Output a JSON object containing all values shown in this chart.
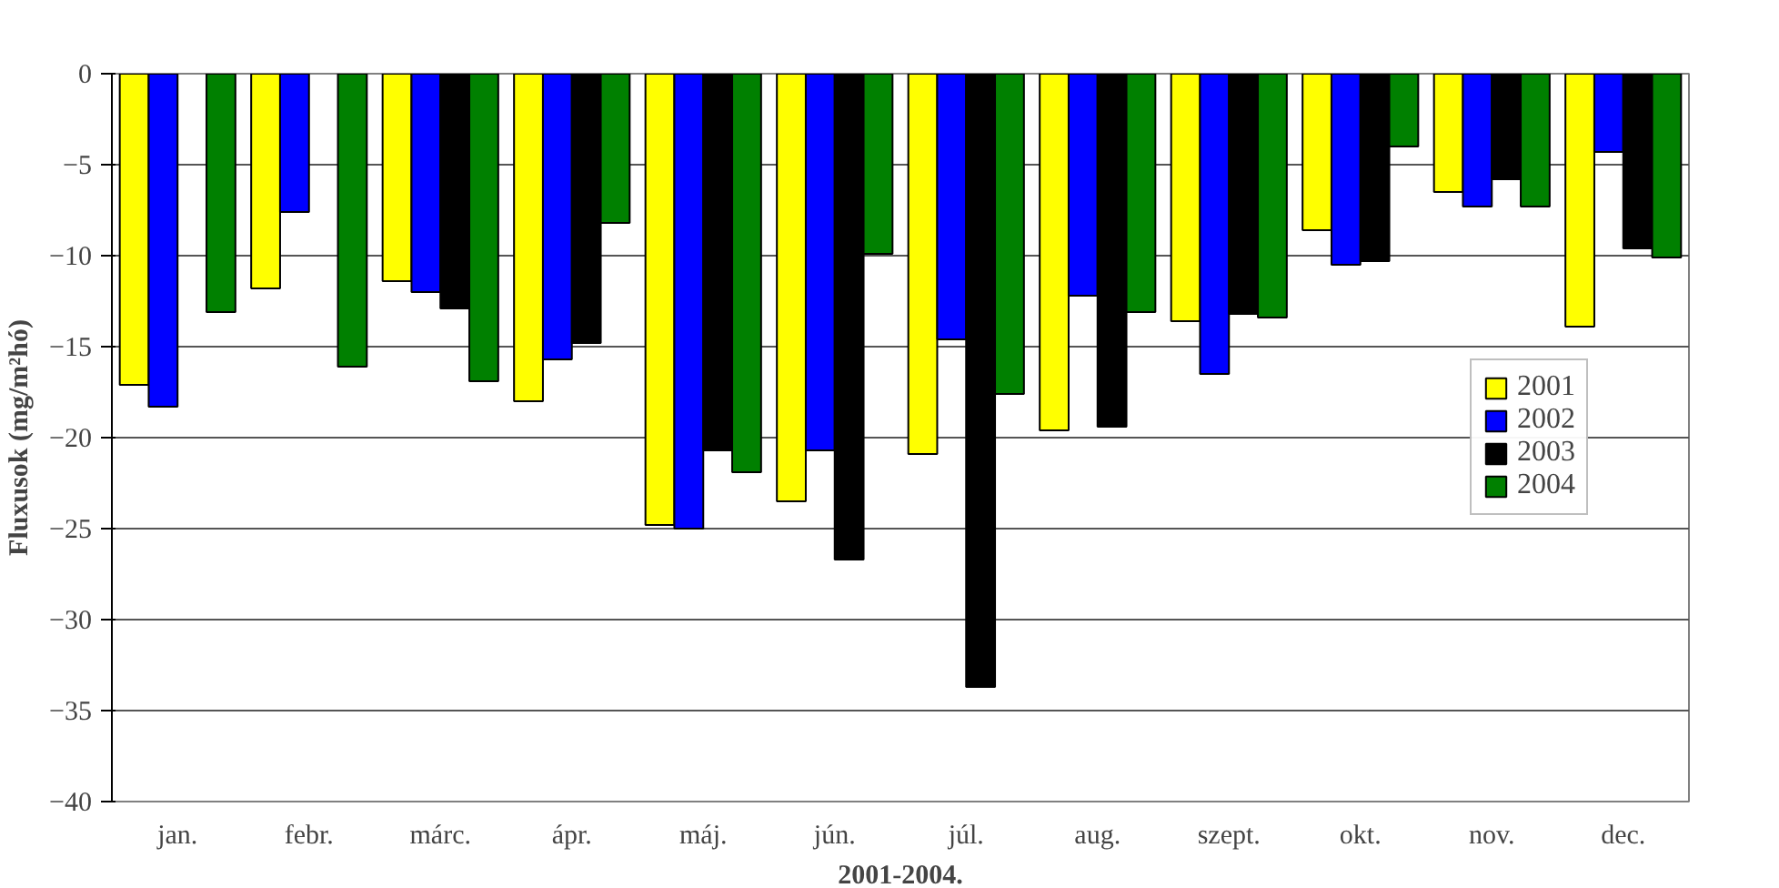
{
  "chart_data": {
    "type": "bar",
    "xlabel": "2001-2004.",
    "ylabel": "Fluxusok (mg/m²hó)",
    "categories": [
      "jan.",
      "febr.",
      "márc.",
      "ápr.",
      "máj.",
      "jún.",
      "júl.",
      "aug.",
      "szept.",
      "okt.",
      "nov.",
      "dec."
    ],
    "series": [
      {
        "name": "2001",
        "color": "#ffff00",
        "values": [
          -17.1,
          -11.8,
          -11.4,
          -18.0,
          -24.8,
          -23.5,
          -20.9,
          -19.6,
          -13.6,
          -8.6,
          -6.5,
          -13.9
        ]
      },
      {
        "name": "2002",
        "color": "#0000ff",
        "values": [
          -18.3,
          -7.6,
          -12.0,
          -15.7,
          -25.0,
          -20.7,
          -14.6,
          -12.2,
          -16.5,
          -10.5,
          -7.3,
          -4.3
        ]
      },
      {
        "name": "2003",
        "color": "#000000",
        "values": [
          null,
          null,
          -12.9,
          -14.8,
          -20.7,
          -26.7,
          -33.7,
          -19.4,
          -13.2,
          -10.3,
          -5.8,
          -9.6
        ]
      },
      {
        "name": "2004",
        "color": "#008000",
        "values": [
          -13.1,
          -16.1,
          -16.9,
          -8.2,
          -21.9,
          -9.9,
          -17.6,
          -13.1,
          -13.4,
          -4.0,
          -7.3,
          -10.1
        ]
      }
    ],
    "ylim": [
      -40,
      0
    ],
    "yticks": [
      -40,
      -35,
      -30,
      -25,
      -20,
      -15,
      -10,
      -5,
      0
    ],
    "grid": "y",
    "legend": "right"
  }
}
